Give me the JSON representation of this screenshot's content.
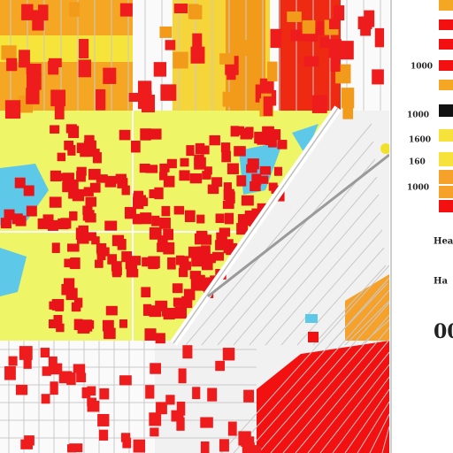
{
  "legend": {
    "items": [
      {
        "label": "1000"
      },
      {
        "label": "1600"
      },
      {
        "label": "160"
      },
      {
        "label": "1000"
      },
      {
        "label": "1000"
      }
    ]
  },
  "notes": {
    "heading": "Hea",
    "subheading": "Ha",
    "big_value": "00"
  }
}
